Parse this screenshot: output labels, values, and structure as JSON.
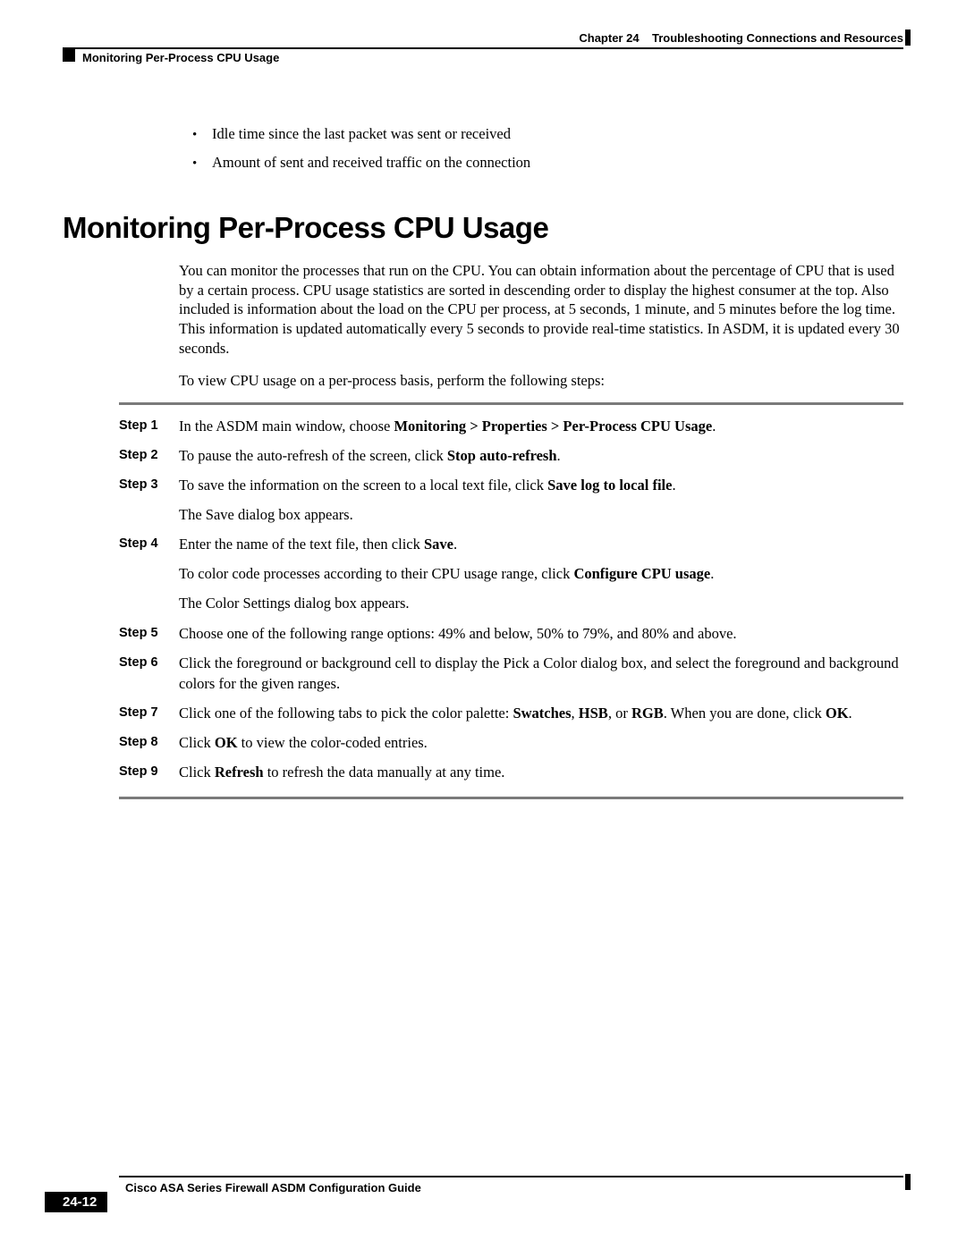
{
  "header": {
    "chapter_label": "Chapter 24",
    "chapter_title": "Troubleshooting Connections and Resources",
    "section_title": "Monitoring Per-Process CPU Usage"
  },
  "bullets": [
    "Idle time since the last packet was sent or received",
    "Amount of sent and received traffic on the connection"
  ],
  "heading": "Monitoring Per-Process CPU Usage",
  "intro": [
    "You can monitor the processes that run on the CPU. You can obtain information about the percentage of CPU that is used by a certain process. CPU usage statistics are sorted in descending order to display the highest consumer at the top. Also included is information about the load on the CPU per process, at 5 seconds, 1 minute, and 5 minutes before the log time. This information is updated automatically every 5 seconds to provide real-time statistics. In ASDM, it is updated every 30 seconds.",
    "To view CPU usage on a per-process basis, perform the following steps:"
  ],
  "steps": [
    {
      "label": "Step 1",
      "body_pre": "In the ASDM main window, choose ",
      "body_bold": "Monitoring > Properties > Per-Process CPU Usage",
      "body_post": "."
    },
    {
      "label": "Step 2",
      "body_pre": "To pause the auto-refresh of the screen, click ",
      "body_bold": "Stop auto-refresh",
      "body_post": "."
    },
    {
      "label": "Step 3",
      "body_pre": "To save the information on the screen to a local text file, click ",
      "body_bold": "Save log to local file",
      "body_post": ".",
      "extra": "The Save dialog box appears."
    },
    {
      "label": "Step 4",
      "body_pre": "Enter the name of the text file, then click ",
      "body_bold": "Save",
      "body_post": ".",
      "extra_pre": "To color code processes according to their CPU usage range, click ",
      "extra_bold": "Configure CPU usage",
      "extra_post": ".",
      "extra2": "The Color Settings dialog box appears."
    },
    {
      "label": "Step 5",
      "body_pre": "Choose one of the following range options: 49% and below, 50% to 79%, and 80% and above.",
      "body_bold": "",
      "body_post": ""
    },
    {
      "label": "Step 6",
      "body_pre": "Click the foreground or background cell to display the Pick a Color dialog box, and select the foreground and background colors for the given ranges.",
      "body_bold": "",
      "body_post": ""
    },
    {
      "label": "Step 7",
      "body_pre": "Click one of the following tabs to pick the color palette: ",
      "body_bold": "Swatches",
      "body_mid1": ", ",
      "body_bold2": "HSB",
      "body_mid2": ", or ",
      "body_bold3": "RGB",
      "body_post": ". When you are done, click ",
      "body_bold4": "OK",
      "body_post2": "."
    },
    {
      "label": "Step 8",
      "body_pre": "Click ",
      "body_bold": "OK",
      "body_post": " to view the color-coded entries."
    },
    {
      "label": "Step 9",
      "body_pre": "Click ",
      "body_bold": "Refresh",
      "body_post": " to refresh the data manually at any time."
    }
  ],
  "footer": {
    "guide_title": "Cisco ASA Series Firewall ASDM Configuration Guide",
    "page_number": "24-12"
  }
}
